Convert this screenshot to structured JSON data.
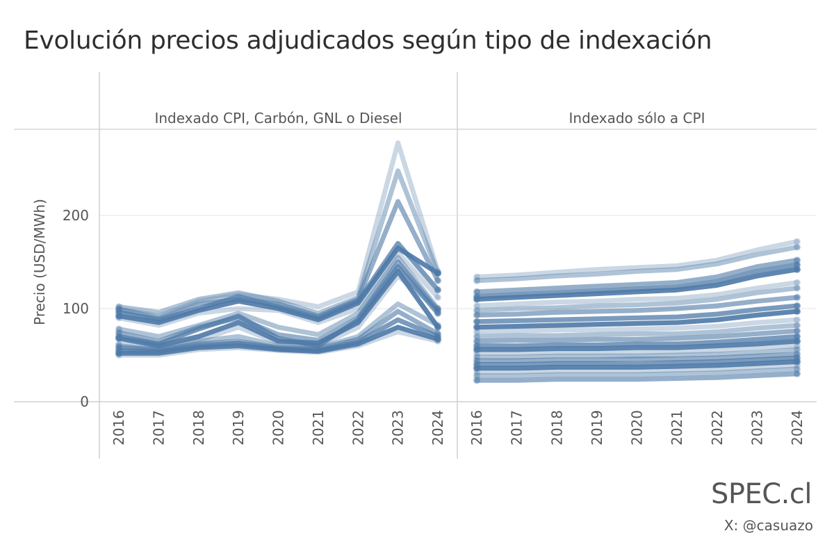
{
  "title": "Evolución precios adjudicados según tipo de indexación",
  "brand": "SPEC.cl",
  "handle": "X: @casuazo",
  "colors": {
    "line": "#4e79a7",
    "grid": "#e6e6e6",
    "frame": "#cfcfcf",
    "text": "#555555"
  },
  "chart_data": {
    "type": "line",
    "ylabel": "Precio (USD/MWh)",
    "ylim": [
      0,
      285
    ],
    "yticks": [
      0,
      100,
      200
    ],
    "x": [
      "2016",
      "2017",
      "2018",
      "2019",
      "2020",
      "2021",
      "2022",
      "2023",
      "2024"
    ],
    "panels": [
      {
        "name": "Indexado CPI, Carbón, GNL o Diesel",
        "series": [
          {
            "values": [
              100,
              92,
              108,
              115,
              110,
              102,
              118,
              278,
              140
            ]
          },
          {
            "values": [
              102,
              96,
              110,
              117,
              108,
              95,
              112,
              248,
              138
            ]
          },
          {
            "values": [
              99,
              90,
              105,
              110,
              105,
              92,
              110,
              215,
              130
            ]
          },
          {
            "values": [
              96,
              88,
              100,
              113,
              102,
              90,
              108,
              170,
              120
            ]
          },
          {
            "values": [
              92,
              85,
              98,
              108,
              100,
              88,
              106,
              165,
              138
            ]
          },
          {
            "values": [
              90,
              82,
              95,
              100,
              98,
              85,
              100,
              160,
              112
            ]
          },
          {
            "values": [
              78,
              70,
              82,
              95,
              80,
              72,
              95,
              155,
              100
            ]
          },
          {
            "values": [
              74,
              65,
              80,
              90,
              72,
              66,
              90,
              150,
              98
            ]
          },
          {
            "values": [
              70,
              62,
              78,
              92,
              68,
              60,
              88,
              145,
              95
            ]
          },
          {
            "values": [
              68,
              60,
              70,
              85,
              65,
              63,
              85,
              140,
              80
            ]
          },
          {
            "values": [
              62,
              58,
              66,
              80,
              63,
              60,
              80,
              135,
              100
            ]
          },
          {
            "values": [
              60,
              56,
              65,
              70,
              60,
              58,
              70,
              105,
              82
            ]
          },
          {
            "values": [
              58,
              56,
              62,
              65,
              58,
              57,
              67,
              97,
              73
            ]
          },
          {
            "values": [
              55,
              54,
              60,
              63,
              57,
              55,
              64,
              88,
              70
            ]
          },
          {
            "values": [
              52,
              52,
              58,
              60,
              56,
              54,
              62,
              80,
              67
            ]
          },
          {
            "values": [
              50,
              50,
              56,
              58,
              55,
              53,
              60,
              75,
              65
            ]
          }
        ]
      },
      {
        "name": "Indexado sólo a CPI",
        "series": [
          {
            "values": [
              134,
              136,
              139,
              142,
              144,
              146,
              152,
              163,
              172
            ]
          },
          {
            "values": [
              130,
              132,
              135,
              137,
              140,
              142,
              148,
              158,
              166
            ]
          },
          {
            "values": [
              118,
              120,
              122,
              124,
              126,
              128,
              134,
              145,
              152
            ]
          },
          {
            "values": [
              113,
              115,
              117,
              119,
              121,
              123,
              129,
              140,
              147
            ]
          },
          {
            "values": [
              110,
              112,
              114,
              116,
              118,
              120,
              125,
              135,
              142
            ]
          },
          {
            "values": [
              103,
              105,
              107,
              108,
              110,
              111,
              115,
              122,
              128
            ]
          },
          {
            "values": [
              98,
              100,
              101,
              103,
              104,
              106,
              110,
              117,
              122
            ]
          },
          {
            "values": [
              93,
              94,
              96,
              97,
              98,
              100,
              103,
              108,
              112
            ]
          },
          {
            "values": [
              86,
              87,
              88,
              89,
              90,
              91,
              94,
              99,
              103
            ]
          },
          {
            "values": [
              80,
              81,
              82,
              83,
              84,
              85,
              88,
              93,
              97
            ]
          },
          {
            "values": [
              75,
              76,
              77,
              77,
              78,
              79,
              81,
              85,
              88
            ]
          },
          {
            "values": [
              70,
              71,
              71,
              72,
              73,
              73,
              75,
              79,
              82
            ]
          },
          {
            "values": [
              65,
              66,
              66,
              67,
              67,
              68,
              70,
              73,
              76
            ]
          },
          {
            "values": [
              60,
              60,
              61,
              61,
              62,
              62,
              64,
              67,
              70
            ]
          },
          {
            "values": [
              56,
              56,
              57,
              57,
              58,
              58,
              60,
              62,
              65
            ]
          },
          {
            "values": [
              52,
              52,
              53,
              53,
              53,
              54,
              55,
              58,
              60
            ]
          },
          {
            "values": [
              48,
              48,
              49,
              49,
              49,
              50,
              51,
              53,
              56
            ]
          },
          {
            "values": [
              44,
              44,
              45,
              45,
              46,
              46,
              47,
              49,
              51
            ]
          },
          {
            "values": [
              40,
              40,
              41,
              41,
              41,
              42,
              43,
              45,
              47
            ]
          },
          {
            "values": [
              36,
              36,
              37,
              37,
              37,
              38,
              39,
              41,
              43
            ]
          },
          {
            "values": [
              32,
              32,
              33,
              33,
              33,
              34,
              35,
              37,
              39
            ]
          },
          {
            "values": [
              28,
              28,
              29,
              29,
              29,
              30,
              31,
              33,
              35
            ]
          },
          {
            "values": [
              23,
              23,
              24,
              24,
              24,
              25,
              26,
              28,
              30
            ]
          }
        ]
      }
    ]
  }
}
